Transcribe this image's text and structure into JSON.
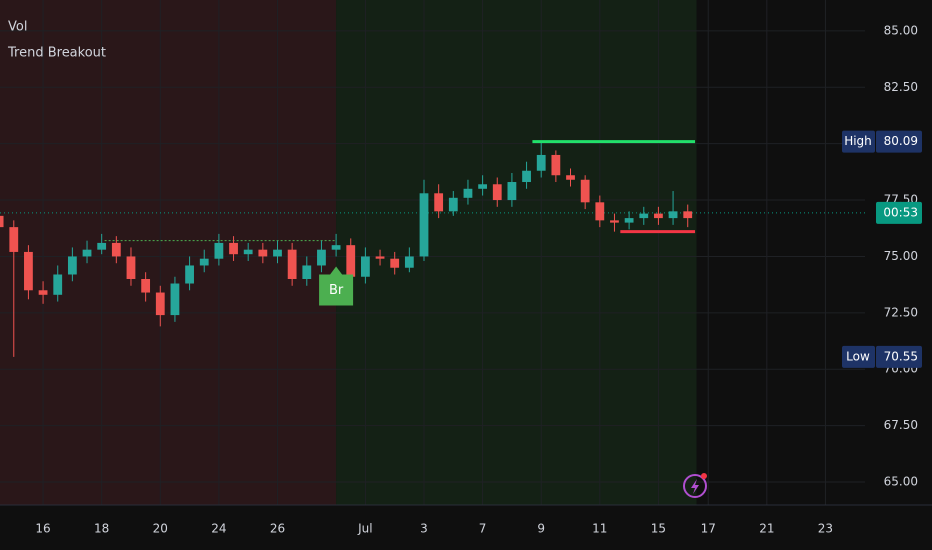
{
  "chart_data": {
    "type": "candlestick",
    "title": "Vol",
    "subtitle": "Trend Breakout",
    "x": [
      -1.5,
      -1,
      -0.5,
      0,
      0.5,
      1,
      1.5,
      2,
      2.5,
      3,
      3.5,
      4,
      4.5,
      5,
      5.5,
      6,
      6.5,
      7,
      7.5,
      8,
      8.5,
      9,
      9.5,
      10,
      10.5,
      11,
      11.5,
      12,
      12.5,
      13,
      13.5,
      14,
      14.5,
      15,
      15.5,
      16,
      16.5,
      17,
      17.5,
      18,
      18.5,
      19,
      19.5,
      20,
      20.5,
      21,
      21.5,
      22
    ],
    "open": [
      76.8,
      76.3,
      75.2,
      73.5,
      73.3,
      74.2,
      75.0,
      75.3,
      75.6,
      75.0,
      74.0,
      73.4,
      72.4,
      73.8,
      74.6,
      74.9,
      75.6,
      75.1,
      75.3,
      75.0,
      75.3,
      74.0,
      74.6,
      75.3,
      75.5,
      74.1,
      75.0,
      74.9,
      74.5,
      75.0,
      77.8,
      77.0,
      77.6,
      78.0,
      78.2,
      77.5,
      78.3,
      78.8,
      79.5,
      78.6,
      78.4,
      77.4,
      76.6,
      76.5,
      76.7,
      76.9,
      76.7,
      77.0
    ],
    "close": [
      76.3,
      75.2,
      73.5,
      73.3,
      74.2,
      75.0,
      75.3,
      75.6,
      75.0,
      74.0,
      73.4,
      72.4,
      73.8,
      74.6,
      74.9,
      75.6,
      75.1,
      75.3,
      75.0,
      75.3,
      74.0,
      74.6,
      75.3,
      75.5,
      74.1,
      75.0,
      74.9,
      74.5,
      75.0,
      77.8,
      77.0,
      77.6,
      78.0,
      78.2,
      77.5,
      78.3,
      78.8,
      79.5,
      78.6,
      78.4,
      77.4,
      76.6,
      76.5,
      76.7,
      76.9,
      76.7,
      77.0,
      76.7
    ],
    "high": [
      77.2,
      76.6,
      75.5,
      73.9,
      74.6,
      75.4,
      75.7,
      76.0,
      75.9,
      75.4,
      74.3,
      73.7,
      74.1,
      75.0,
      75.3,
      76.0,
      75.9,
      75.6,
      75.6,
      75.7,
      75.6,
      75.0,
      75.7,
      76.0,
      75.8,
      75.4,
      75.3,
      75.2,
      75.4,
      78.4,
      78.2,
      77.9,
      78.4,
      78.6,
      78.5,
      78.7,
      79.2,
      80.09,
      79.7,
      78.9,
      78.6,
      77.7,
      76.9,
      77.0,
      77.2,
      77.2,
      77.9,
      77.3
    ],
    "low": [
      75.9,
      70.55,
      73.1,
      72.9,
      73.0,
      73.9,
      74.7,
      75.1,
      74.7,
      73.7,
      73.0,
      71.9,
      72.1,
      73.5,
      74.3,
      74.6,
      74.8,
      74.8,
      74.7,
      74.7,
      73.7,
      73.7,
      74.3,
      75.0,
      73.8,
      73.8,
      74.6,
      74.2,
      74.3,
      74.8,
      76.7,
      76.8,
      77.3,
      77.7,
      77.2,
      77.2,
      78.0,
      78.5,
      78.3,
      78.1,
      77.1,
      76.3,
      76.1,
      76.2,
      76.4,
      76.4,
      76.4,
      76.3
    ],
    "up_color": "#26a69a",
    "down_color": "#ef5350",
    "xlim": [
      -1.47,
      28.05
    ],
    "ylim": [
      63.98,
      86.37
    ],
    "yticks": [
      {
        "value": 65,
        "label": "65.00"
      },
      {
        "value": 67.5,
        "label": "67.50"
      },
      {
        "value": 70,
        "label": "70.00"
      },
      {
        "value": 72.5,
        "label": "72.50"
      },
      {
        "value": 75,
        "label": "75.00"
      },
      {
        "value": 77.5,
        "label": "77.50"
      },
      {
        "value": 80,
        "label": "80.00"
      },
      {
        "value": 82.5,
        "label": "82.50"
      },
      {
        "value": 85,
        "label": "85.00"
      }
    ],
    "xticks": [
      {
        "value": 0,
        "label": "16"
      },
      {
        "value": 2,
        "label": "18"
      },
      {
        "value": 4,
        "label": "20"
      },
      {
        "value": 6,
        "label": "24"
      },
      {
        "value": 8,
        "label": "26"
      },
      {
        "value": 11,
        "label": "Jul"
      },
      {
        "value": 13,
        "label": "3"
      },
      {
        "value": 15,
        "label": "7"
      },
      {
        "value": 17,
        "label": "9"
      },
      {
        "value": 19,
        "label": "11"
      },
      {
        "value": 21,
        "label": "15"
      },
      {
        "value": 22.7,
        "label": "17"
      },
      {
        "value": 24.7,
        "label": "21"
      },
      {
        "value": 26.7,
        "label": "23"
      }
    ],
    "grid": true,
    "zones": [
      {
        "from": -1.47,
        "to": 10,
        "color": "#2a1719"
      },
      {
        "from": 10,
        "to": 22.3,
        "color": "#142115"
      }
    ],
    "levels": [
      {
        "value": 80.09,
        "from": 16.7,
        "to": 22.25,
        "color": "#22e06a"
      },
      {
        "value": 76.1,
        "from": 19.7,
        "to": 22.25,
        "color": "#f23645"
      }
    ],
    "trendline": {
      "value": 75.7,
      "from": 2.1,
      "to": 10,
      "color": "#4caf50"
    },
    "badges": [
      {
        "label": "High",
        "value": 80.09
      },
      {
        "label": "Low",
        "value": 70.55
      }
    ],
    "last_price": {
      "label": "00:53",
      "value": 76.93,
      "color": "#089981"
    },
    "signal": {
      "label": "Br",
      "x": 10,
      "color": "#4caf50"
    }
  }
}
